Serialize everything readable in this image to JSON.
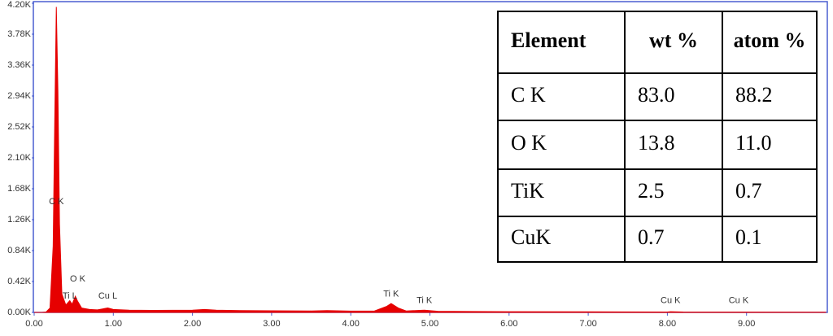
{
  "chart_data": {
    "type": "area",
    "color": "#e60000",
    "x": [
      0.0,
      0.1,
      0.15,
      0.2,
      0.24,
      0.26,
      0.28,
      0.3,
      0.32,
      0.35,
      0.4,
      0.45,
      0.48,
      0.52,
      0.55,
      0.6,
      0.7,
      0.8,
      0.93,
      1.0,
      1.2,
      1.5,
      2.0,
      2.15,
      2.3,
      2.6,
      3.0,
      3.5,
      3.7,
      4.0,
      4.3,
      4.45,
      4.51,
      4.6,
      4.7,
      4.93,
      5.1,
      5.5,
      6.0,
      7.0,
      8.0,
      8.04,
      8.2,
      9.0,
      10.0
    ],
    "values": [
      0,
      0,
      5,
      60,
      900,
      2600,
      4150,
      3000,
      1200,
      250,
      100,
      160,
      110,
      220,
      150,
      60,
      40,
      35,
      60,
      40,
      30,
      28,
      30,
      40,
      30,
      25,
      22,
      20,
      25,
      18,
      20,
      80,
      120,
      60,
      20,
      30,
      15,
      12,
      10,
      8,
      6,
      10,
      5,
      4,
      3
    ],
    "xlim": [
      0,
      10
    ],
    "ylim": [
      0,
      4200
    ],
    "xticks": [
      {
        "value": 0,
        "label": "0.00"
      },
      {
        "value": 1,
        "label": "1.00"
      },
      {
        "value": 2,
        "label": "2.00"
      },
      {
        "value": 3,
        "label": "3.00"
      },
      {
        "value": 4,
        "label": "4.00"
      },
      {
        "value": 5,
        "label": "5.00"
      },
      {
        "value": 6,
        "label": "6.00"
      },
      {
        "value": 7,
        "label": "7.00"
      },
      {
        "value": 8,
        "label": "8.00"
      },
      {
        "value": 9,
        "label": "9.00"
      }
    ],
    "yticks": [
      {
        "value": 0,
        "label": "0.00K"
      },
      {
        "value": 420,
        "label": "0.42K"
      },
      {
        "value": 840,
        "label": "0.84K"
      },
      {
        "value": 1260,
        "label": "1.26K"
      },
      {
        "value": 1680,
        "label": "1.68K"
      },
      {
        "value": 2100,
        "label": "2.10K"
      },
      {
        "value": 2520,
        "label": "2.52K"
      },
      {
        "value": 2940,
        "label": "2.94K"
      },
      {
        "value": 3360,
        "label": "3.36K"
      },
      {
        "value": 3780,
        "label": "3.78K"
      },
      {
        "value": 4200,
        "label": "4.20K"
      }
    ],
    "annotations": [
      {
        "text": "C  K",
        "x": 0.28,
        "y": 1500
      },
      {
        "text": "O  K",
        "x": 0.55,
        "y": 450
      },
      {
        "text": "Ti L",
        "x": 0.45,
        "y": 220
      },
      {
        "text": "Cu L",
        "x": 0.93,
        "y": 220
      },
      {
        "text": "Ti K",
        "x": 4.51,
        "y": 250
      },
      {
        "text": "Ti K",
        "x": 4.93,
        "y": 160
      },
      {
        "text": "Cu K",
        "x": 8.04,
        "y": 160
      },
      {
        "text": "Cu K",
        "x": 8.9,
        "y": 160
      }
    ],
    "table": {
      "header": [
        "Element",
        "wt %",
        "atom %"
      ],
      "rows": [
        [
          "C K",
          "83.0",
          "88.2"
        ],
        [
          "O K",
          "13.8",
          "11.0"
        ],
        [
          "TiK",
          "2.5",
          "0.7"
        ],
        [
          "CuK",
          "0.7",
          "0.1"
        ]
      ]
    }
  }
}
